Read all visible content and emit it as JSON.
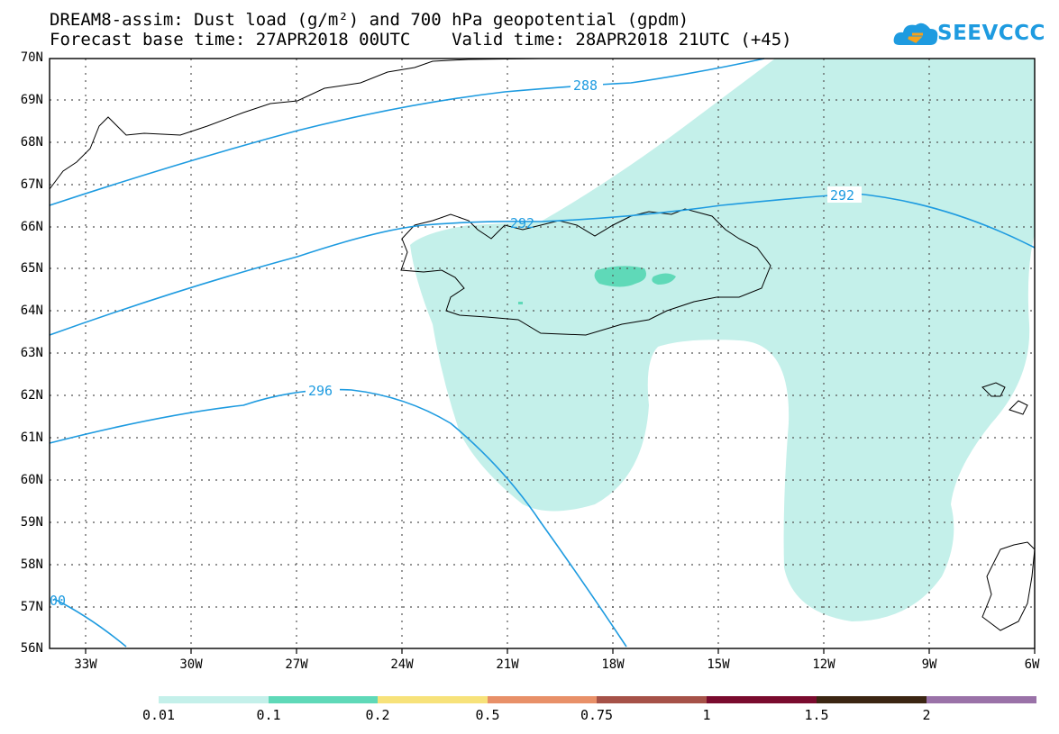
{
  "title": {
    "line1": "DREAM8-assim: Dust load (g/m²) and 700 hPa geopotential (gpdm)",
    "line2": "Forecast base time: 27APR2018 00UTC    Valid time: 28APR2018 21UTC (+45)"
  },
  "logo": {
    "text": "SEEVCCC",
    "icon": "cloud-icon",
    "color": "#1e9be0"
  },
  "map": {
    "lat_labels": [
      "70N",
      "69N",
      "68N",
      "67N",
      "66N",
      "65N",
      "64N",
      "63N",
      "62N",
      "61N",
      "60N",
      "59N",
      "58N",
      "57N",
      "56N"
    ],
    "lon_labels": [
      "33W",
      "30W",
      "27W",
      "24W",
      "21W",
      "18W",
      "15W",
      "12W",
      "9W",
      "6W"
    ],
    "contour_labels": [
      "288",
      "292",
      "292",
      "296",
      "00"
    ],
    "contour_color": "#1e9be0"
  },
  "colorbar": {
    "labels": [
      "0.01",
      "0.1",
      "0.2",
      "0.5",
      "0.75",
      "1",
      "1.5",
      "2"
    ],
    "colors": [
      "#c4f0ea",
      "#5fd9b8",
      "#f7e27a",
      "#e89068",
      "#a65248",
      "#7a0b2e",
      "#3b2612",
      "#9a72a8"
    ]
  },
  "dust_colors": {
    "light": "#c4f0ea",
    "medium": "#5fd9b8"
  }
}
